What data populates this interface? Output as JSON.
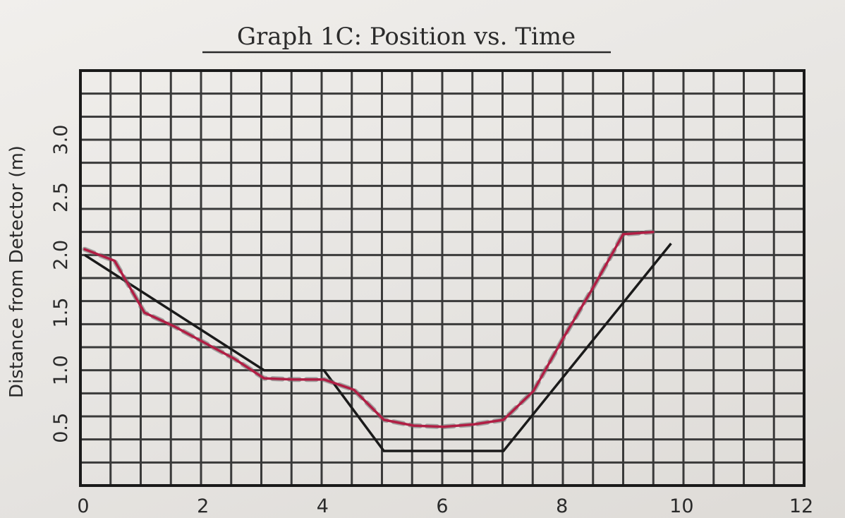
{
  "chart_data": {
    "type": "line",
    "title": "Graph 1C: Position vs. Time",
    "ylabel": "Distance from Detector (m)",
    "xlabel": "",
    "xlim": [
      0,
      12
    ],
    "ylim": [
      0,
      3.5
    ],
    "x_ticks": [
      "0",
      "2",
      "4",
      "6",
      "8",
      "10",
      "12"
    ],
    "y_ticks": [
      "0.5",
      "1.0",
      "1.5",
      "2.0",
      "2.5",
      "3.0"
    ],
    "grid": true,
    "series": [
      {
        "color": "#1a1a1a",
        "points": [
          [
            0,
            2.0
          ],
          [
            3,
            1.0
          ],
          [
            4,
            1.0
          ],
          [
            5,
            0.3
          ],
          [
            7,
            0.3
          ],
          [
            9.8,
            2.1
          ]
        ]
      },
      {
        "color": "#b01e44",
        "points": [
          [
            0,
            2.05
          ],
          [
            0.5,
            1.95
          ],
          [
            1.0,
            1.5
          ],
          [
            1.5,
            1.38
          ],
          [
            2.0,
            1.24
          ],
          [
            2.5,
            1.1
          ],
          [
            3.0,
            0.93
          ],
          [
            3.5,
            0.92
          ],
          [
            4.0,
            0.92
          ],
          [
            4.5,
            0.83
          ],
          [
            5.0,
            0.57
          ],
          [
            5.5,
            0.52
          ],
          [
            6.0,
            0.51
          ],
          [
            6.5,
            0.53
          ],
          [
            7.0,
            0.57
          ],
          [
            7.5,
            0.82
          ],
          [
            8.0,
            1.28
          ],
          [
            8.5,
            1.72
          ],
          [
            9.0,
            2.18
          ],
          [
            9.5,
            2.2
          ]
        ]
      }
    ]
  }
}
